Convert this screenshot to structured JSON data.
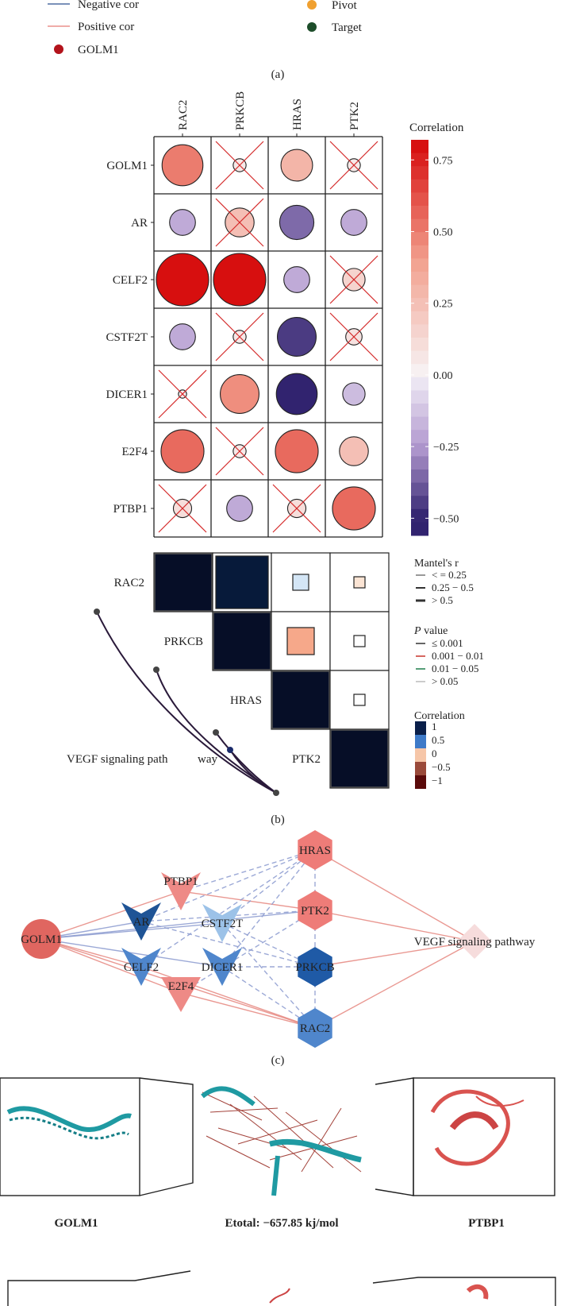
{
  "legend_a": {
    "items": [
      {
        "label": "Negative cor",
        "color": "#2b4f8f"
      },
      {
        "label": "Positive cor",
        "color": "#e57b74"
      },
      {
        "label": "GOLM1",
        "color": "#b3131b"
      },
      {
        "label": "Pivot",
        "color": "#f0a030"
      },
      {
        "label": "Target",
        "color": "#1d4d2a"
      }
    ]
  },
  "panel_labels": {
    "a": "(a)",
    "b": "(b)",
    "c": "(c)"
  },
  "corr_matrix": {
    "columns": [
      "RAC2",
      "PRKCB",
      "HRAS",
      "PTK2"
    ],
    "rows": [
      {
        "name": "GOLM1",
        "values": [
          0.5,
          0.05,
          0.3,
          0.05
        ],
        "sig": [
          true,
          false,
          true,
          false
        ]
      },
      {
        "name": "AR",
        "values": [
          -0.2,
          0.25,
          -0.35,
          -0.2
        ],
        "sig": [
          true,
          false,
          true,
          true
        ]
      },
      {
        "name": "CELF2",
        "values": [
          0.82,
          0.82,
          -0.2,
          0.15
        ],
        "sig": [
          true,
          true,
          true,
          false
        ]
      },
      {
        "name": "CSTF2T",
        "values": [
          -0.2,
          0.05,
          -0.45,
          0.08
        ],
        "sig": [
          true,
          false,
          true,
          false
        ]
      },
      {
        "name": "DICER1",
        "values": [
          0.02,
          0.45,
          -0.5,
          -0.15
        ],
        "sig": [
          false,
          true,
          true,
          true
        ]
      },
      {
        "name": "E2F4",
        "values": [
          0.55,
          0.05,
          0.55,
          0.25
        ],
        "sig": [
          true,
          false,
          true,
          true
        ]
      },
      {
        "name": "PTBP1",
        "values": [
          0.1,
          -0.2,
          0.1,
          0.55
        ],
        "sig": [
          false,
          true,
          false,
          true
        ]
      }
    ]
  },
  "colorbar": {
    "title": "Correlation",
    "ticks": [
      "0.75",
      "0.50",
      "0.25",
      "0.00",
      "−0.25",
      "−0.50"
    ]
  },
  "mantel": {
    "genes": [
      "RAC2",
      "PRKCB",
      "HRAS",
      "PTK2"
    ],
    "pairs": [
      {
        "i": 0,
        "j": 1,
        "value": 0.85
      },
      {
        "i": 0,
        "j": 2,
        "value": 0.15
      },
      {
        "i": 0,
        "j": 3,
        "value": 0.05
      },
      {
        "i": 1,
        "j": 2,
        "value": 0.35
      },
      {
        "i": 1,
        "j": 3,
        "value": 0.0
      },
      {
        "i": 2,
        "j": 3,
        "value": 0.0
      }
    ],
    "pathway_label_left": "VEGF signaling path",
    "pathway_label_right": "way",
    "legend_mantel_title": "Mantel's r",
    "legend_mantel_items": [
      "< = 0.25",
      "0.25 − 0.5",
      "> 0.5"
    ],
    "legend_p_title_italic": "P",
    "legend_p_title_rest": " value",
    "legend_p_items": [
      {
        "label": "≤ 0.001",
        "color": "#333333"
      },
      {
        "label": "0.001 − 0.01",
        "color": "#c8342a"
      },
      {
        "label": "0.01 − 0.05",
        "color": "#1e7d4a"
      },
      {
        "label": "> 0.05",
        "color": "#bbbbbb"
      }
    ],
    "legend_corr_title": "Correlation",
    "legend_corr_items": [
      {
        "label": "1",
        "color": "#0a1f4a"
      },
      {
        "label": "0.5",
        "color": "#3e7ac8"
      },
      {
        "label": "0",
        "color": "#f6c6a8"
      },
      {
        "label": "−0.5",
        "color": "#9a4a3a"
      },
      {
        "label": "−1",
        "color": "#5a0a0a"
      }
    ]
  },
  "network": {
    "nodes": [
      {
        "id": "GOLM1",
        "label": "GOLM1",
        "shape": "circle",
        "color": "#e06660"
      },
      {
        "id": "PTBP1",
        "label": "PTBP1",
        "shape": "v",
        "color": "#ee8a86"
      },
      {
        "id": "AR",
        "label": "AR",
        "shape": "v",
        "color": "#1f5496"
      },
      {
        "id": "CSTF2T",
        "label": "CSTF2T",
        "shape": "v",
        "color": "#9cc2e8"
      },
      {
        "id": "CELF2",
        "label": "CELF2",
        "shape": "v",
        "color": "#4f86cc"
      },
      {
        "id": "DICER1",
        "label": "DICER1",
        "shape": "v",
        "color": "#4f86cc"
      },
      {
        "id": "E2F4",
        "label": "E2F4",
        "shape": "tri",
        "color": "#ee8a86"
      },
      {
        "id": "HRAS",
        "label": "HRAS",
        "shape": "hex",
        "color": "#ee7c78"
      },
      {
        "id": "PTK2",
        "label": "PTK2",
        "shape": "hex",
        "color": "#ee7c78"
      },
      {
        "id": "PRKCB",
        "label": "PRKCB",
        "shape": "hex",
        "color": "#1f5aa6"
      },
      {
        "id": "RAC2",
        "label": "RAC2",
        "shape": "hex",
        "color": "#4f86cc"
      },
      {
        "id": "VEGF",
        "label": "VEGF signaling pathway",
        "shape": "diamond",
        "color": "#f6dcdc"
      }
    ]
  },
  "docking": {
    "left_label": "GOLM1",
    "center_label": "Etotal: −657.85 kj/mol",
    "right_label": "PTBP1"
  }
}
